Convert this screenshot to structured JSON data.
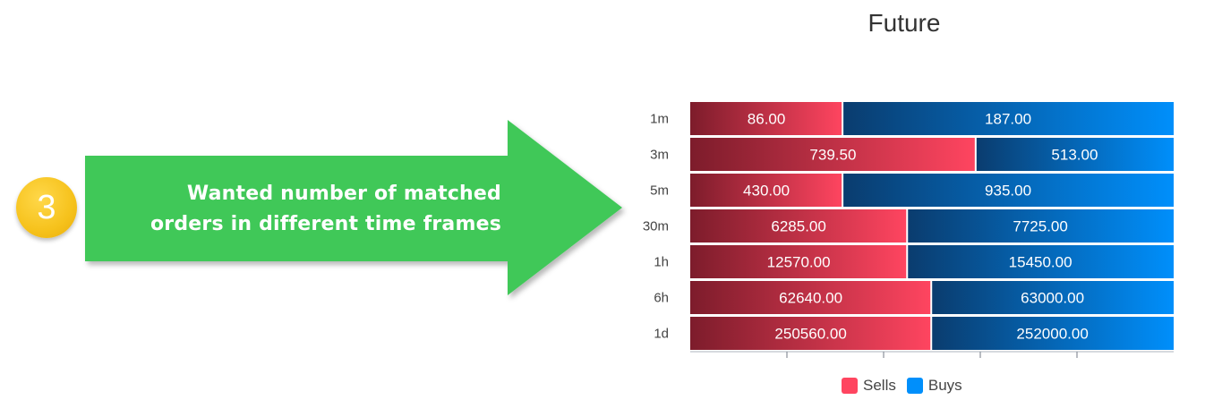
{
  "step": "3",
  "callout": {
    "line1": "Wanted number of matched",
    "line2": "orders in different time frames"
  },
  "colors": {
    "sells": "#ff4560",
    "sells_dark": "#7d1c2b",
    "buys": "#008ffb",
    "buys_dark": "#0a3c6e",
    "arrow": "#3fc859"
  },
  "chart_data": {
    "type": "bar",
    "orientation": "horizontal",
    "stacked": "100%",
    "title": "Future",
    "categories": [
      "1m",
      "3m",
      "5m",
      "30m",
      "1h",
      "6h",
      "1d"
    ],
    "series": [
      {
        "name": "Sells",
        "values": [
          86.0,
          739.5,
          430.0,
          6285.0,
          12570.0,
          62640.0,
          250560.0
        ],
        "labels": [
          "86.00",
          "739.50",
          "430.00",
          "6285.00",
          "12570.00",
          "62640.00",
          "250560.00"
        ]
      },
      {
        "name": "Buys",
        "values": [
          187.0,
          513.0,
          935.0,
          7725.0,
          15450.0,
          63000.0,
          252000.0
        ],
        "labels": [
          "187.00",
          "513.00",
          "935.00",
          "7725.00",
          "15450.00",
          "63000.00",
          "252000.00"
        ]
      }
    ],
    "legend_position": "bottom",
    "grid": false
  }
}
